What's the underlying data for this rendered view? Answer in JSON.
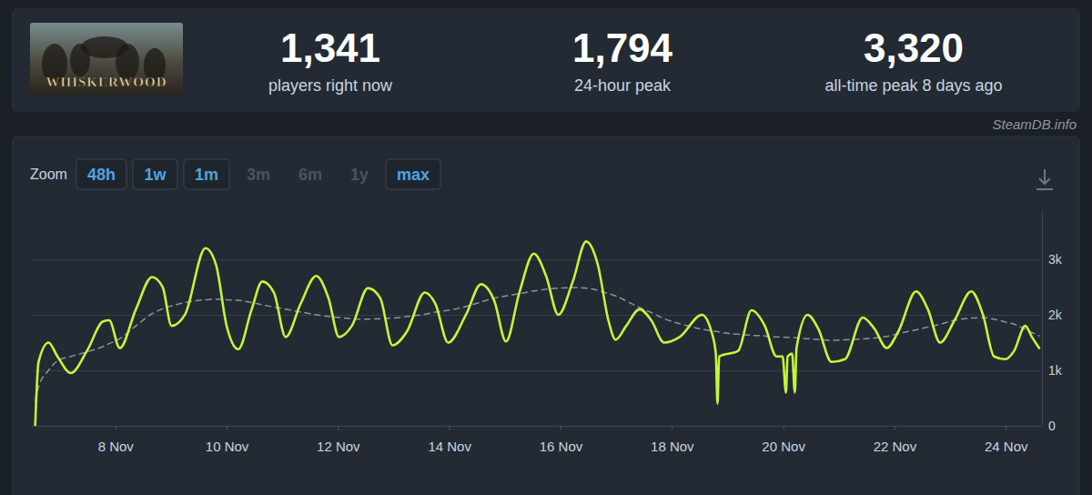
{
  "header": {
    "logo": "WHISKERWOOD",
    "stats": [
      {
        "value": "1,341",
        "label": "players right now"
      },
      {
        "value": "1,794",
        "label": "24-hour peak"
      },
      {
        "value": "3,320",
        "label": "all-time peak 8 days ago"
      }
    ],
    "source": "SteamDB.info"
  },
  "toolbar": {
    "label": "Zoom",
    "buttons": [
      {
        "text": "48h",
        "active": true
      },
      {
        "text": "1w",
        "active": true
      },
      {
        "text": "1m",
        "active": true
      },
      {
        "text": "3m",
        "active": false
      },
      {
        "text": "6m",
        "active": false
      },
      {
        "text": "1y",
        "active": false
      },
      {
        "text": "max",
        "active": true
      }
    ]
  },
  "chart_data": {
    "type": "line",
    "grid": true,
    "x": [
      6.56,
      6.62,
      6.8,
      6.96,
      7.2,
      7.49,
      7.78,
      7.89,
      8.08,
      8.37,
      8.66,
      8.85,
      9.01,
      9.25,
      9.62,
      9.81,
      10.0,
      10.21,
      10.45,
      10.64,
      10.85,
      11.06,
      11.33,
      11.61,
      11.83,
      12.02,
      12.25,
      12.54,
      12.76,
      12.98,
      13.24,
      13.56,
      13.75,
      13.98,
      14.3,
      14.57,
      14.81,
      15.02,
      15.26,
      15.52,
      15.74,
      15.96,
      16.22,
      16.46,
      16.67,
      16.86,
      16.99,
      17.18,
      17.42,
      17.63,
      17.86,
      18.14,
      18.54,
      18.71,
      18.79,
      18.82,
      18.85,
      19.19,
      19.43,
      19.67,
      19.88,
      19.99,
      20.05,
      20.08,
      20.16,
      20.21,
      20.24,
      20.44,
      20.63,
      20.87,
      21.11,
      21.43,
      21.64,
      21.86,
      22.07,
      22.39,
      22.6,
      22.82,
      23.08,
      23.38,
      23.59,
      23.79,
      23.99,
      24.15,
      24.35,
      24.47,
      24.6
    ],
    "series": [
      {
        "color": "#c3f73a",
        "line_style": "solid",
        "values": [
          0,
          1150,
          1500,
          1250,
          950,
          1350,
          1880,
          1900,
          1400,
          2100,
          2680,
          2500,
          1800,
          2000,
          3200,
          2900,
          1800,
          1380,
          2100,
          2600,
          2400,
          1600,
          2200,
          2700,
          2300,
          1600,
          1800,
          2480,
          2300,
          1450,
          1700,
          2400,
          2200,
          1500,
          2000,
          2550,
          2250,
          1520,
          2400,
          3100,
          2700,
          2000,
          2600,
          3320,
          2900,
          1900,
          1550,
          1800,
          2100,
          1900,
          1500,
          1600,
          2000,
          1700,
          1300,
          400,
          1250,
          1350,
          2080,
          1800,
          1250,
          1250,
          600,
          1250,
          1300,
          600,
          1400,
          2000,
          1750,
          1150,
          1200,
          1950,
          1750,
          1400,
          1700,
          2420,
          2100,
          1500,
          1900,
          2420,
          2000,
          1250,
          1200,
          1350,
          1800,
          1600,
          1400
        ]
      },
      {
        "color": "#8a939c",
        "line_style": "dashed",
        "values": [
          450,
          700,
          1000,
          1170,
          1250,
          1330,
          1430,
          1480,
          1570,
          1800,
          2020,
          2110,
          2160,
          2220,
          2270,
          2280,
          2270,
          2260,
          2220,
          2180,
          2140,
          2100,
          2050,
          2000,
          1970,
          1950,
          1930,
          1920,
          1930,
          1940,
          1970,
          2010,
          2050,
          2080,
          2150,
          2230,
          2300,
          2340,
          2380,
          2430,
          2460,
          2480,
          2490,
          2480,
          2440,
          2380,
          2340,
          2250,
          2130,
          2040,
          1930,
          1840,
          1740,
          1710,
          1700,
          1700,
          1690,
          1650,
          1630,
          1620,
          1600,
          1600,
          1595,
          1595,
          1590,
          1590,
          1585,
          1570,
          1555,
          1540,
          1550,
          1565,
          1580,
          1610,
          1660,
          1730,
          1780,
          1830,
          1900,
          1940,
          1950,
          1920,
          1870,
          1830,
          1740,
          1680,
          1620
        ]
      }
    ],
    "xlim": [
      6.5,
      24.65
    ],
    "xticks": [
      {
        "value": 8,
        "label": "8 Nov"
      },
      {
        "value": 10,
        "label": "10 Nov"
      },
      {
        "value": 12,
        "label": "12 Nov"
      },
      {
        "value": 14,
        "label": "14 Nov"
      },
      {
        "value": 16,
        "label": "16 Nov"
      },
      {
        "value": 18,
        "label": "18 Nov"
      },
      {
        "value": 20,
        "label": "20 Nov"
      },
      {
        "value": 22,
        "label": "22 Nov"
      },
      {
        "value": 24,
        "label": "24 Nov"
      }
    ],
    "ylim": [
      0,
      3900
    ],
    "yticks": [
      0,
      {
        "value": 1000,
        "label": "1k"
      },
      {
        "value": 2000,
        "label": "2k"
      },
      {
        "value": 3000,
        "label": "3k"
      }
    ]
  }
}
